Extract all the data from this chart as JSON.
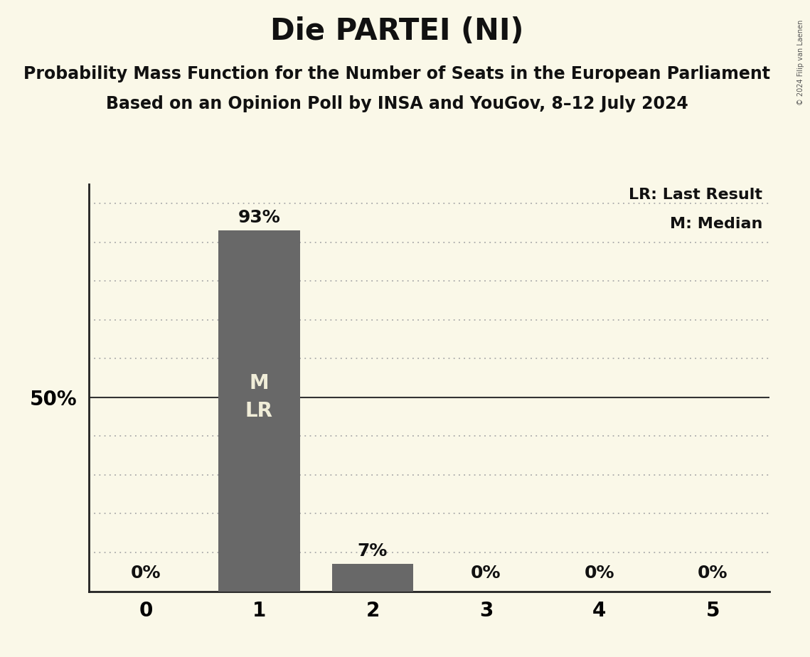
{
  "title": "Die PARTEI (NI)",
  "subtitle1": "Probability Mass Function for the Number of Seats in the European Parliament",
  "subtitle2": "Based on an Opinion Poll by INSA and YouGov, 8–12 July 2024",
  "copyright": "© 2024 Filip van Laenen",
  "seats": [
    0,
    1,
    2,
    3,
    4,
    5
  ],
  "probabilities": [
    0.0,
    0.93,
    0.07,
    0.0,
    0.0,
    0.0
  ],
  "bar_color": "#686868",
  "background_color": "#faf8e8",
  "median": 1,
  "last_result": 1,
  "ylabel_50": "50%",
  "legend_lr": "LR: Last Result",
  "legend_m": "M: Median",
  "title_fontsize": 30,
  "subtitle_fontsize": 17,
  "tick_fontsize": 20,
  "bar_label_fontsize": 18,
  "inner_label_fontsize": 20,
  "ylabel_fontsize": 20,
  "legend_fontsize": 16,
  "ymax": 1.0,
  "dotted_line_color": "#aaaaaa",
  "solid_line_color": "#333333"
}
